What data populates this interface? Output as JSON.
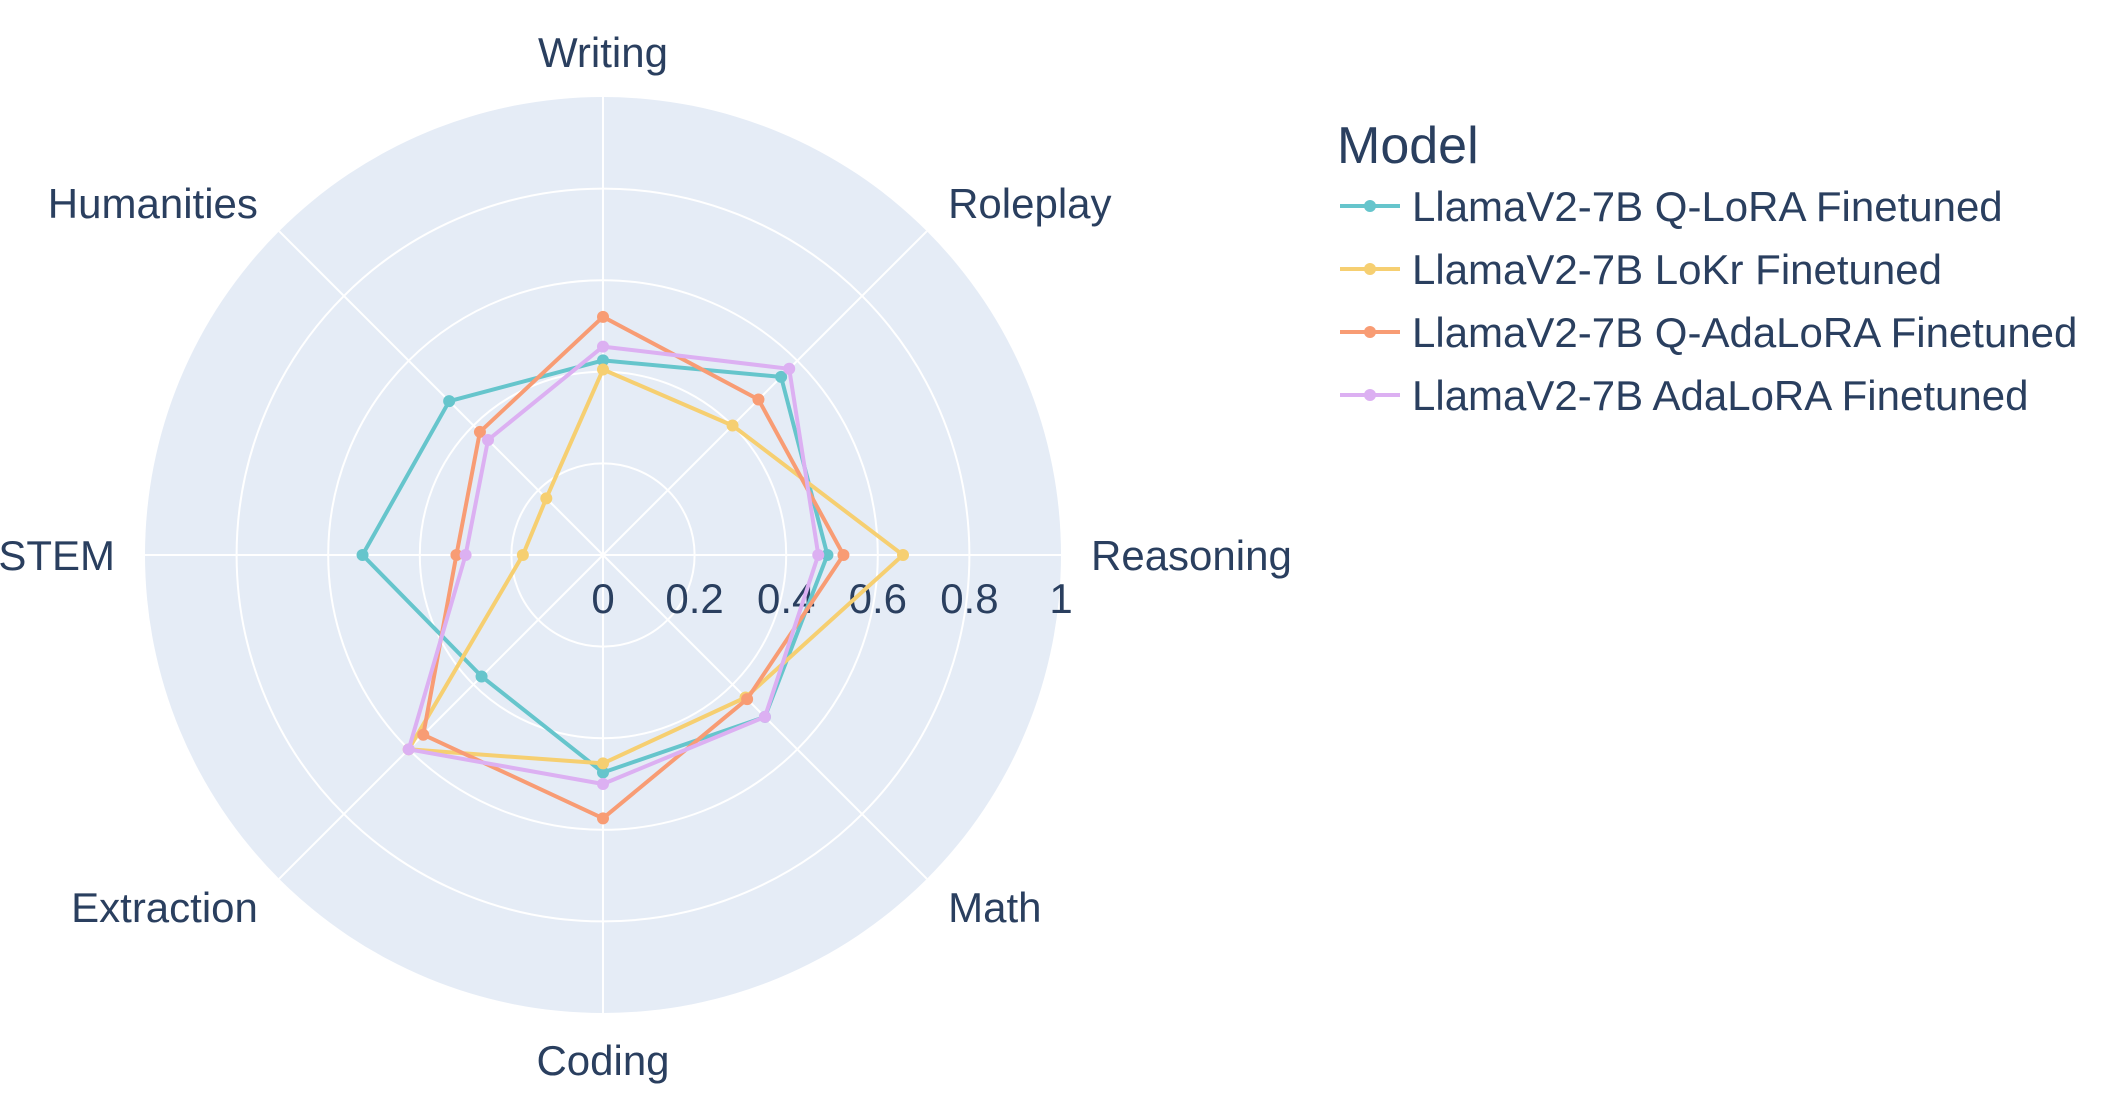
{
  "chart_data": {
    "type": "radar",
    "title": "",
    "categories": [
      "Writing",
      "Roleplay",
      "Reasoning",
      "Math",
      "Coding",
      "Extraction",
      "STEM",
      "Humanities"
    ],
    "radial_range": [
      0,
      1
    ],
    "radial_ticks": [
      "0",
      "0.2",
      "0.4",
      "0.6",
      "0.8",
      "1"
    ],
    "radial_tick_values": [
      0,
      0.2,
      0.4,
      0.6,
      0.8,
      1
    ],
    "legend_title": "Model",
    "legend_position": "top-right",
    "grid": true,
    "series": [
      {
        "name": "LlamaV2-7B Q-LoRA Finetuned",
        "color": "#66c5cc",
        "values": [
          0.425,
          0.55,
          0.49,
          0.5,
          0.475,
          0.375,
          0.525,
          0.475
        ]
      },
      {
        "name": "LlamaV2-7B LoKr Finetuned",
        "color": "#f6cf71",
        "values": [
          0.405,
          0.4,
          0.655,
          0.44,
          0.455,
          0.6,
          0.175,
          0.175
        ]
      },
      {
        "name": "LlamaV2-7B Q-AdaLoRA Finetuned",
        "color": "#f89c74",
        "values": [
          0.52,
          0.48,
          0.525,
          0.445,
          0.575,
          0.555,
          0.32,
          0.38
        ]
      },
      {
        "name": "LlamaV2-7B AdaLoRA Finetuned",
        "color": "#dcb0f2",
        "values": [
          0.455,
          0.575,
          0.47,
          0.5,
          0.5,
          0.6,
          0.3,
          0.355
        ]
      }
    ]
  }
}
